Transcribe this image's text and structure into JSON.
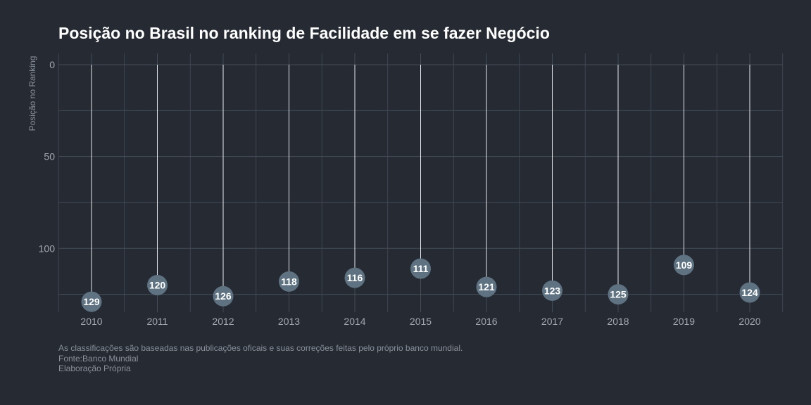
{
  "chart_data": {
    "type": "scatter",
    "title": "Posição no Brasil no ranking de Facilidade em se fazer Negócio",
    "xlabel": "",
    "ylabel": "Posição no Ranking",
    "x": [
      "2010",
      "2011",
      "2012",
      "2013",
      "2014",
      "2015",
      "2016",
      "2017",
      "2018",
      "2019",
      "2020"
    ],
    "series": [
      {
        "values": [
          129,
          120,
          126,
          118,
          116,
          111,
          121,
          123,
          125,
          109,
          124
        ]
      }
    ],
    "yticks": [
      "0",
      "50",
      "100"
    ],
    "ylim": [
      0,
      135
    ],
    "y_reversed": true,
    "grid": true,
    "colors": {
      "background": "#252a33",
      "grid": "#454c57",
      "stem": "#e6e8ee",
      "point": "#5e7282",
      "label": "#ffffff"
    }
  },
  "caption": {
    "line1": "As classificações são baseadas nas publicações oficais e suas correções feitas pelo próprio banco mundial.",
    "line2": "Fonte:Banco Mundial",
    "line3": "Elaboração Própria"
  }
}
